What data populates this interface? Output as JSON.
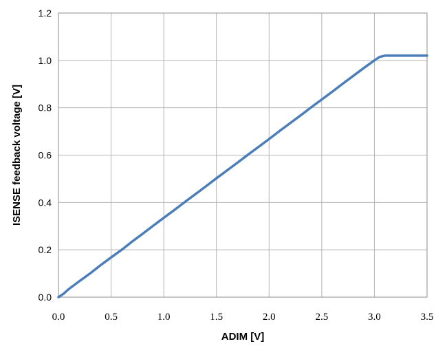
{
  "chart_data": {
    "type": "line",
    "xlabel": "ADIM [V]",
    "ylabel": "ISENSE feedback voltage [V]",
    "xlim": [
      0,
      3.5
    ],
    "ylim": [
      0,
      1.2
    ],
    "xticks": [
      "0.0",
      "0.5",
      "1.0",
      "1.5",
      "2.0",
      "2.5",
      "3.0",
      "3.5"
    ],
    "xtick_values": [
      0,
      0.5,
      1.0,
      1.5,
      2.0,
      2.5,
      3.0,
      3.5
    ],
    "yticks": [
      "0.0",
      "0.2",
      "0.4",
      "0.6",
      "0.8",
      "1.0",
      "1.2"
    ],
    "ytick_values": [
      0,
      0.2,
      0.4,
      0.6,
      0.8,
      1.0,
      1.2
    ],
    "grid": true,
    "series": [
      {
        "color": "#4a7ebb",
        "x": [
          0.0,
          0.05,
          0.1,
          0.2,
          0.3,
          0.4,
          0.5,
          0.6,
          0.7,
          0.8,
          0.9,
          1.0,
          1.1,
          1.2,
          1.3,
          1.4,
          1.5,
          1.6,
          1.7,
          1.8,
          1.9,
          2.0,
          2.1,
          2.2,
          2.3,
          2.4,
          2.5,
          2.6,
          2.7,
          2.8,
          2.9,
          3.0,
          3.05,
          3.1,
          3.2,
          3.3,
          3.4,
          3.5
        ],
        "y": [
          0.0,
          0.015,
          0.035,
          0.068,
          0.1,
          0.135,
          0.168,
          0.2,
          0.235,
          0.268,
          0.302,
          0.335,
          0.368,
          0.402,
          0.435,
          0.468,
          0.502,
          0.535,
          0.568,
          0.602,
          0.635,
          0.668,
          0.702,
          0.735,
          0.768,
          0.802,
          0.835,
          0.868,
          0.902,
          0.935,
          0.968,
          1.0,
          1.015,
          1.02,
          1.02,
          1.02,
          1.02,
          1.02
        ]
      }
    ]
  }
}
